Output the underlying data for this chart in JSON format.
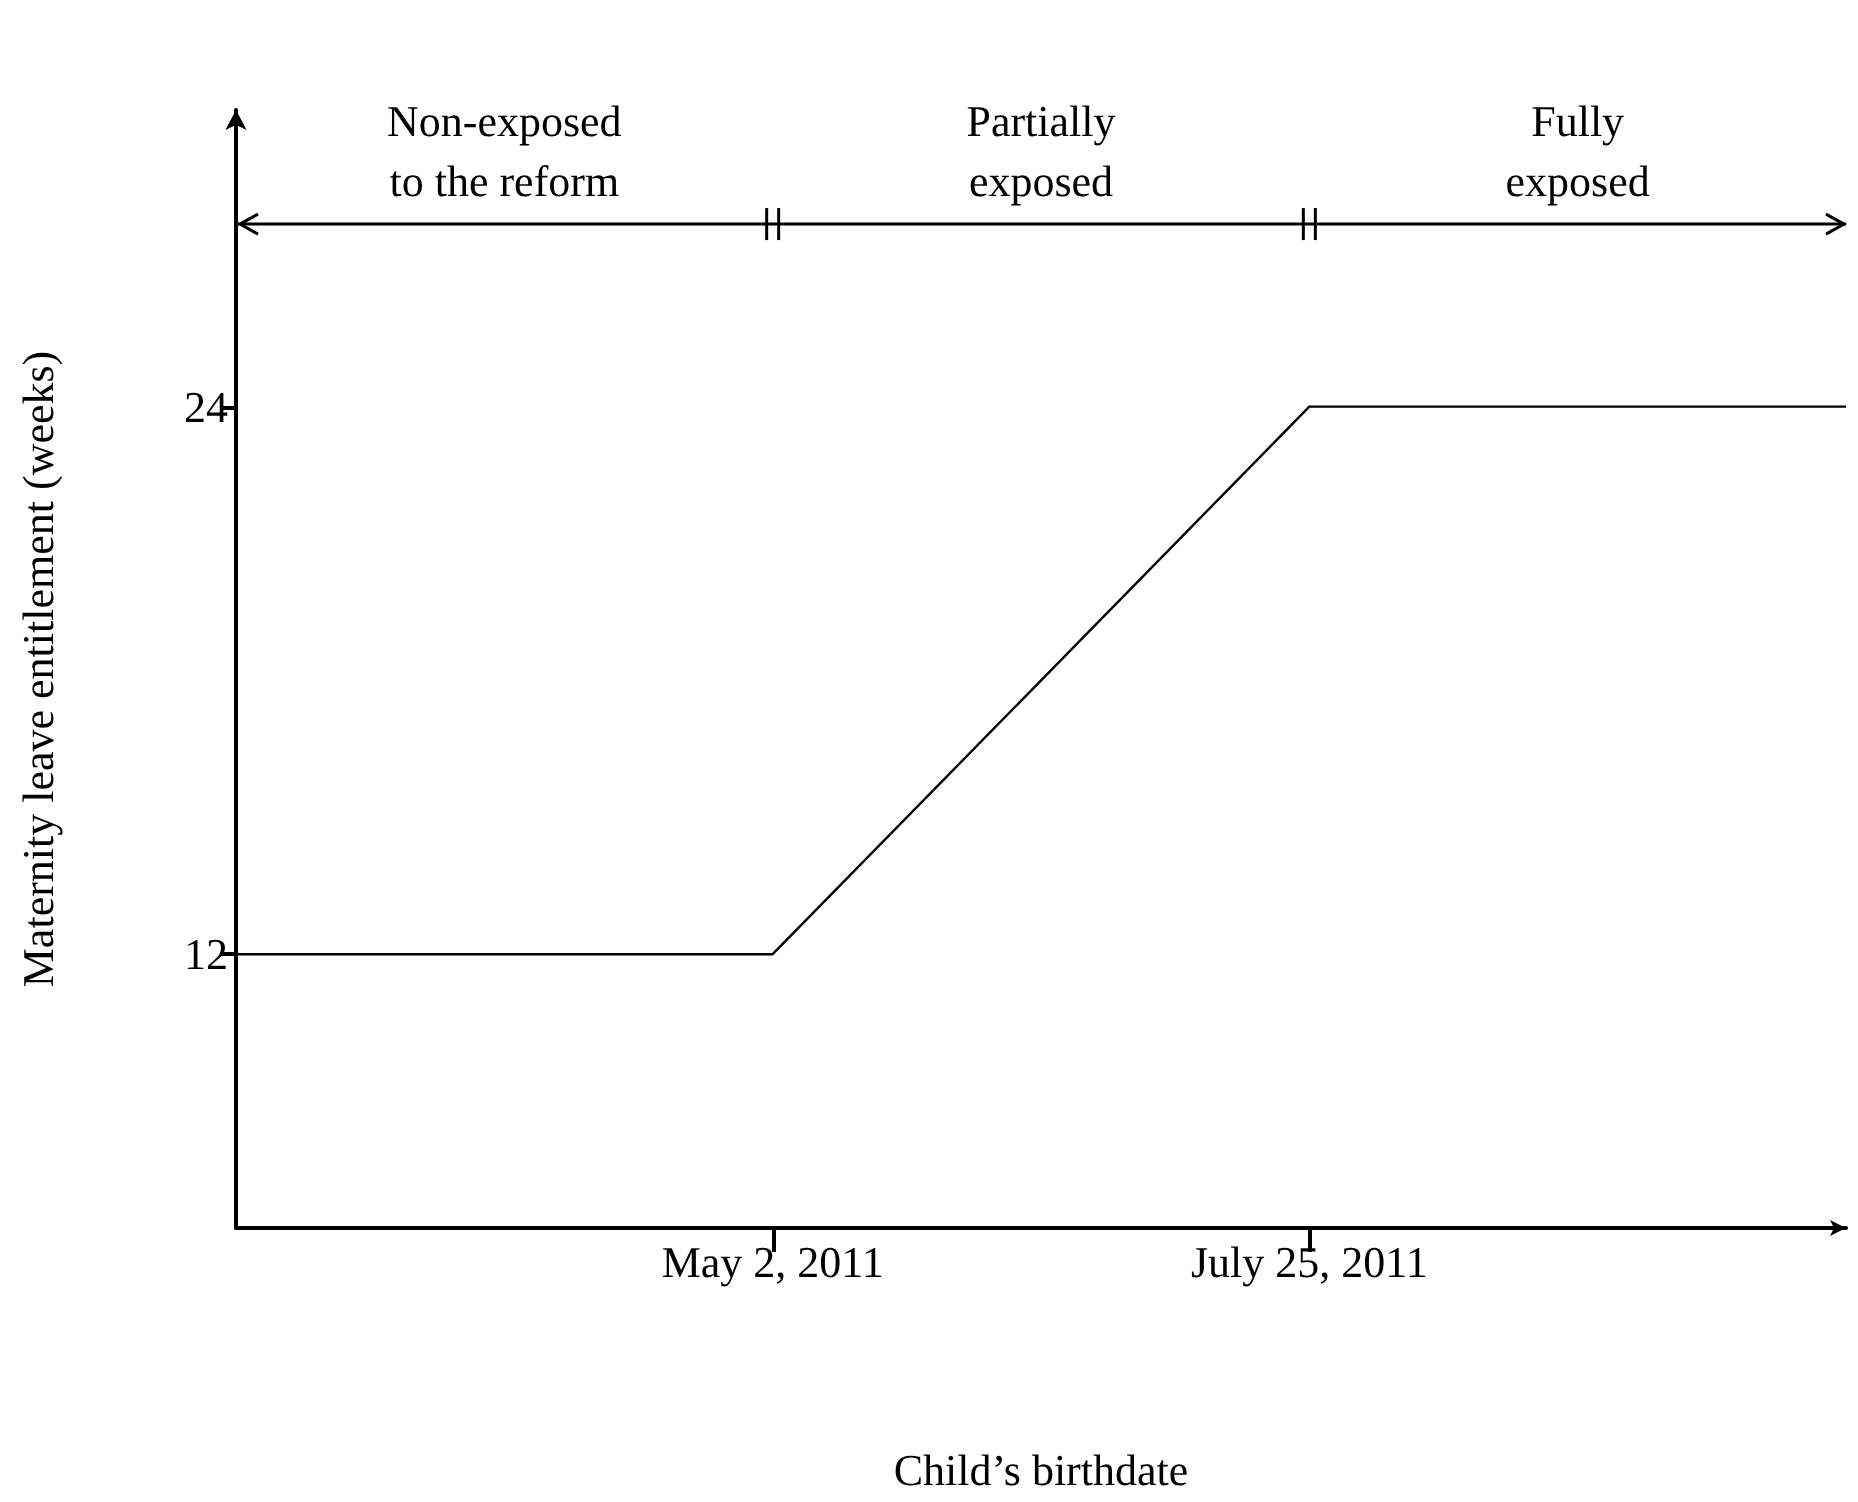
{
  "chart_data": {
    "type": "line",
    "xlabel": "Child’s birthdate",
    "ylabel": "Maternity leave entitlement (weeks)",
    "x": [
      "2011-02-07",
      "2011-05-02",
      "2011-07-25",
      "2011-10-17"
    ],
    "series": [
      {
        "color": "#000000",
        "values": [
          12,
          12,
          24,
          24
        ]
      }
    ],
    "xlim": [
      "2011-02-07",
      "2011-10-17"
    ],
    "xticks": [
      {
        "value": "2011-05-02",
        "label": "May 2, 2011"
      },
      {
        "value": "2011-07-25",
        "label": "July 25, 2011"
      }
    ],
    "ylim": [
      6,
      30.5
    ],
    "yticks": [
      12,
      24
    ],
    "annotations": [
      "Non-exposed\nto the reform",
      "Partially\nexposed",
      "Fully\nexposed"
    ],
    "ref_lines": [
      {
        "axis": "y",
        "value": 28,
        "color": "#000000",
        "line_style": "solid"
      }
    ],
    "grid": false,
    "marker": "none",
    "line_style": "solid"
  }
}
